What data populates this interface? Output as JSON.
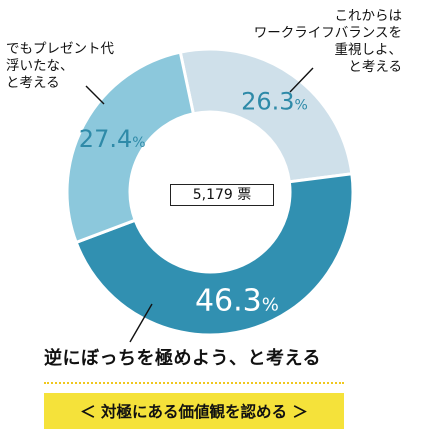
{
  "chart_data": {
    "type": "donut",
    "total_label": "5,179 票",
    "slices": [
      {
        "label_lines": [
          "これからは",
          "ワークライフバランスを",
          "重視しよ、",
          "と考える"
        ],
        "value": 26.3,
        "value_text": "26.3",
        "unit": "%",
        "color": "#cfe0ea",
        "text_color": "#2e8aa8"
      },
      {
        "label_lines": [
          "逆にぼっちを極めよう、と考える"
        ],
        "value": 46.3,
        "value_text": "46.3",
        "unit": "%",
        "color": "#3190b1",
        "text_color": "#ffffff"
      },
      {
        "label_lines": [
          "でもプレゼント代",
          "浮いたな、",
          "と考える"
        ],
        "value": 27.4,
        "value_text": "27.4",
        "unit": "%",
        "color": "#8cc8dc",
        "text_color": "#2e8aa8"
      }
    ]
  },
  "cta": {
    "label": "＜ 対極にある価値観を認める ＞"
  }
}
